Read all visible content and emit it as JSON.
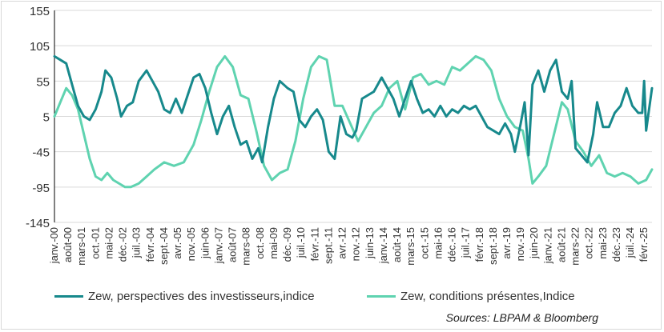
{
  "chart_data": {
    "type": "line",
    "title": "",
    "xlabel": "",
    "ylabel": "",
    "ylim": [
      -145,
      155
    ],
    "yticks": [
      155,
      105,
      55,
      5,
      -45,
      -95,
      -145
    ],
    "xlim": [
      "2000-01",
      "2025-06"
    ],
    "xtick_labels": [
      "janv.-00",
      "août-00",
      "mars-01",
      "oct.-01",
      "mai-02",
      "déc.-02",
      "juil.-03",
      "févr.-04",
      "sept.-04",
      "avr.-05",
      "nov.-05",
      "juin-06",
      "janv.-07",
      "août-07",
      "mars-08",
      "oct.-08",
      "mai-09",
      "déc.-09",
      "juil.-10",
      "févr.-11",
      "sept.-11",
      "avr.-12",
      "nov.-12",
      "juin-13",
      "janv.-14",
      "août-14",
      "mars-15",
      "oct.-15",
      "mai-16",
      "déc.-16",
      "juil.-17",
      "févr.-18",
      "sept.-18",
      "avr.-19",
      "nov.-19",
      "juin-20",
      "janv.-21",
      "août-21",
      "mars-22",
      "oct.-22",
      "mai-23",
      "déc.-23",
      "juil.-24",
      "févr.-25"
    ],
    "grid": "horizontal",
    "legend_position": "bottom",
    "series": [
      {
        "name": "Zew, perspectives des investisseurs,indice",
        "color": "#17898c",
        "points": [
          [
            "2000-01",
            90
          ],
          [
            "2000-04",
            85
          ],
          [
            "2000-07",
            80
          ],
          [
            "2000-10",
            50
          ],
          [
            "2001-01",
            20
          ],
          [
            "2001-04",
            5
          ],
          [
            "2001-07",
            0
          ],
          [
            "2001-10",
            15
          ],
          [
            "2002-01",
            40
          ],
          [
            "2002-03",
            70
          ],
          [
            "2002-06",
            60
          ],
          [
            "2002-09",
            30
          ],
          [
            "2002-11",
            5
          ],
          [
            "2003-02",
            20
          ],
          [
            "2003-05",
            25
          ],
          [
            "2003-08",
            55
          ],
          [
            "2003-12",
            70
          ],
          [
            "2004-03",
            55
          ],
          [
            "2004-06",
            40
          ],
          [
            "2004-09",
            15
          ],
          [
            "2004-12",
            10
          ],
          [
            "2005-03",
            30
          ],
          [
            "2005-06",
            10
          ],
          [
            "2005-09",
            35
          ],
          [
            "2005-12",
            60
          ],
          [
            "2006-03",
            65
          ],
          [
            "2006-06",
            45
          ],
          [
            "2006-09",
            10
          ],
          [
            "2006-12",
            -20
          ],
          [
            "2007-03",
            5
          ],
          [
            "2007-06",
            20
          ],
          [
            "2007-09",
            -10
          ],
          [
            "2007-12",
            -35
          ],
          [
            "2008-03",
            -30
          ],
          [
            "2008-06",
            -55
          ],
          [
            "2008-09",
            -40
          ],
          [
            "2008-11",
            -60
          ],
          [
            "2009-02",
            -10
          ],
          [
            "2009-05",
            30
          ],
          [
            "2009-08",
            55
          ],
          [
            "2009-12",
            45
          ],
          [
            "2010-03",
            40
          ],
          [
            "2010-06",
            0
          ],
          [
            "2010-09",
            -10
          ],
          [
            "2010-12",
            5
          ],
          [
            "2011-03",
            15
          ],
          [
            "2011-06",
            0
          ],
          [
            "2011-09",
            -45
          ],
          [
            "2011-12",
            -55
          ],
          [
            "2012-03",
            5
          ],
          [
            "2012-06",
            -20
          ],
          [
            "2012-09",
            -25
          ],
          [
            "2012-11",
            -15
          ],
          [
            "2013-02",
            30
          ],
          [
            "2013-05",
            35
          ],
          [
            "2013-08",
            40
          ],
          [
            "2013-12",
            60
          ],
          [
            "2014-03",
            45
          ],
          [
            "2014-06",
            30
          ],
          [
            "2014-09",
            5
          ],
          [
            "2014-12",
            30
          ],
          [
            "2015-03",
            55
          ],
          [
            "2015-06",
            30
          ],
          [
            "2015-09",
            10
          ],
          [
            "2015-12",
            15
          ],
          [
            "2016-03",
            5
          ],
          [
            "2016-06",
            20
          ],
          [
            "2016-09",
            5
          ],
          [
            "2016-12",
            15
          ],
          [
            "2017-03",
            10
          ],
          [
            "2017-06",
            20
          ],
          [
            "2017-09",
            15
          ],
          [
            "2017-12",
            20
          ],
          [
            "2018-03",
            5
          ],
          [
            "2018-06",
            -10
          ],
          [
            "2018-09",
            -15
          ],
          [
            "2018-12",
            -20
          ],
          [
            "2019-03",
            -5
          ],
          [
            "2019-06",
            -20
          ],
          [
            "2019-08",
            -45
          ],
          [
            "2019-11",
            -5
          ],
          [
            "2020-01",
            25
          ],
          [
            "2020-03",
            -50
          ],
          [
            "2020-05",
            50
          ],
          [
            "2020-08",
            70
          ],
          [
            "2020-11",
            40
          ],
          [
            "2021-02",
            70
          ],
          [
            "2021-05",
            85
          ],
          [
            "2021-08",
            40
          ],
          [
            "2021-11",
            30
          ],
          [
            "2022-01",
            55
          ],
          [
            "2022-03",
            -40
          ],
          [
            "2022-06",
            -50
          ],
          [
            "2022-09",
            -60
          ],
          [
            "2022-12",
            -20
          ],
          [
            "2023-02",
            25
          ],
          [
            "2023-05",
            -10
          ],
          [
            "2023-08",
            -10
          ],
          [
            "2023-11",
            10
          ],
          [
            "2024-02",
            20
          ],
          [
            "2024-05",
            45
          ],
          [
            "2024-08",
            20
          ],
          [
            "2024-11",
            10
          ],
          [
            "2025-01",
            10
          ],
          [
            "2025-02",
            55
          ],
          [
            "2025-03",
            -15
          ],
          [
            "2025-06",
            45
          ]
        ]
      },
      {
        "name": "Zew,  conditions présentes,Indice",
        "color": "#5fd3b0",
        "points": [
          [
            "2000-01",
            5
          ],
          [
            "2000-04",
            25
          ],
          [
            "2000-07",
            45
          ],
          [
            "2000-10",
            35
          ],
          [
            "2001-01",
            15
          ],
          [
            "2001-04",
            -20
          ],
          [
            "2001-07",
            -55
          ],
          [
            "2001-10",
            -80
          ],
          [
            "2002-01",
            -85
          ],
          [
            "2002-04",
            -75
          ],
          [
            "2002-07",
            -85
          ],
          [
            "2002-10",
            -90
          ],
          [
            "2003-01",
            -95
          ],
          [
            "2003-04",
            -95
          ],
          [
            "2003-08",
            -90
          ],
          [
            "2003-12",
            -80
          ],
          [
            "2004-04",
            -70
          ],
          [
            "2004-09",
            -60
          ],
          [
            "2005-02",
            -65
          ],
          [
            "2005-07",
            -60
          ],
          [
            "2005-12",
            -35
          ],
          [
            "2006-04",
            0
          ],
          [
            "2006-08",
            40
          ],
          [
            "2006-12",
            75
          ],
          [
            "2007-04",
            90
          ],
          [
            "2007-08",
            75
          ],
          [
            "2007-12",
            35
          ],
          [
            "2008-04",
            30
          ],
          [
            "2008-08",
            -15
          ],
          [
            "2008-12",
            -65
          ],
          [
            "2009-04",
            -85
          ],
          [
            "2009-08",
            -75
          ],
          [
            "2009-12",
            -70
          ],
          [
            "2010-04",
            -30
          ],
          [
            "2010-08",
            30
          ],
          [
            "2010-12",
            75
          ],
          [
            "2011-04",
            90
          ],
          [
            "2011-08",
            85
          ],
          [
            "2011-12",
            20
          ],
          [
            "2012-04",
            20
          ],
          [
            "2012-08",
            -5
          ],
          [
            "2012-12",
            -30
          ],
          [
            "2013-04",
            -10
          ],
          [
            "2013-08",
            10
          ],
          [
            "2013-12",
            20
          ],
          [
            "2014-04",
            45
          ],
          [
            "2014-08",
            55
          ],
          [
            "2014-12",
            15
          ],
          [
            "2015-04",
            60
          ],
          [
            "2015-08",
            65
          ],
          [
            "2015-12",
            50
          ],
          [
            "2016-04",
            55
          ],
          [
            "2016-08",
            50
          ],
          [
            "2016-12",
            75
          ],
          [
            "2017-04",
            70
          ],
          [
            "2017-08",
            80
          ],
          [
            "2017-12",
            90
          ],
          [
            "2018-04",
            85
          ],
          [
            "2018-08",
            70
          ],
          [
            "2018-12",
            30
          ],
          [
            "2019-04",
            5
          ],
          [
            "2019-08",
            -10
          ],
          [
            "2019-12",
            -15
          ],
          [
            "2020-03",
            -55
          ],
          [
            "2020-05",
            -90
          ],
          [
            "2020-08",
            -80
          ],
          [
            "2020-12",
            -65
          ],
          [
            "2021-04",
            -20
          ],
          [
            "2021-08",
            25
          ],
          [
            "2021-11",
            15
          ],
          [
            "2022-03",
            -30
          ],
          [
            "2022-07",
            -45
          ],
          [
            "2022-11",
            -65
          ],
          [
            "2023-03",
            -50
          ],
          [
            "2023-07",
            -75
          ],
          [
            "2023-11",
            -80
          ],
          [
            "2024-03",
            -75
          ],
          [
            "2024-07",
            -80
          ],
          [
            "2024-11",
            -90
          ],
          [
            "2025-03",
            -85
          ],
          [
            "2025-06",
            -70
          ]
        ]
      }
    ]
  },
  "legend": {
    "items": [
      {
        "label": "Zew, perspectives des investisseurs,indice",
        "color": "#17898c"
      },
      {
        "label": "Zew,  conditions présentes,Indice",
        "color": "#5fd3b0"
      }
    ]
  },
  "source_text": "Sources: LBPAM & Bloomberg"
}
